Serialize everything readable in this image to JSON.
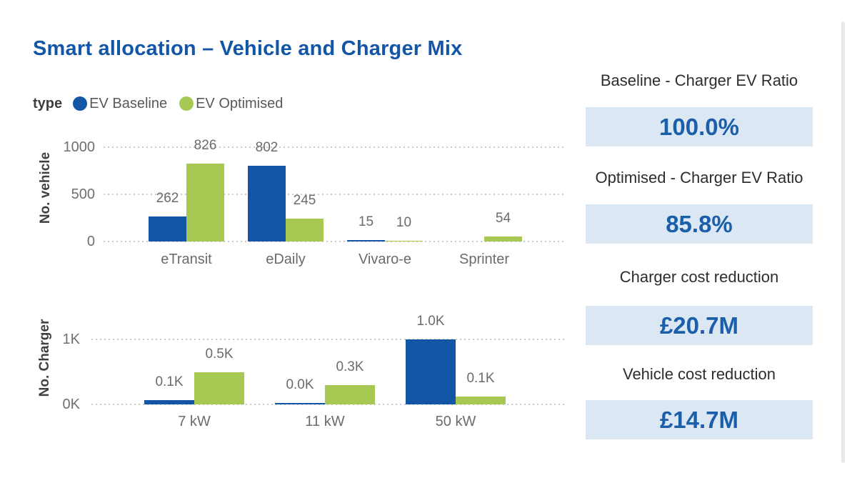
{
  "title": "Smart allocation – Vehicle and Charger Mix",
  "legend": {
    "label": "type",
    "items": [
      {
        "name": "EV Baseline",
        "color": "#1356a6"
      },
      {
        "name": "EV Optimised",
        "color": "#a8c854"
      }
    ]
  },
  "colors": {
    "baseline_blue": "#1356a6",
    "optimised_green": "#a8c854",
    "title_blue": "#1456a6",
    "kpi_value_blue": "#1b5ea9",
    "kpi_box_bg": "#dbe7f3",
    "chart_text_gray": "#6b6b6b"
  },
  "chart_data": [
    {
      "type": "bar",
      "ylabel": "No. vehicle",
      "categories": [
        "eTransit",
        "eDaily",
        "Vivaro-e",
        "Sprinter"
      ],
      "series": [
        {
          "name": "EV Baseline",
          "values": [
            262,
            802,
            15,
            0
          ],
          "data_labels": [
            "262",
            "802",
            "15",
            ""
          ]
        },
        {
          "name": "EV Optimised",
          "values": [
            826,
            245,
            10,
            54
          ],
          "data_labels": [
            "826",
            "245",
            "10",
            "54"
          ]
        }
      ],
      "ylim": [
        0,
        1000
      ],
      "yticks": [
        {
          "value": 1000,
          "label": "1000"
        },
        {
          "value": 500,
          "label": "500"
        },
        {
          "value": 0,
          "label": "0"
        }
      ],
      "grid": "horizontal dotted",
      "legend_position": "top"
    },
    {
      "type": "bar",
      "ylabel": "No. Charger",
      "categories": [
        "7 kW",
        "11 kW",
        "50 kW"
      ],
      "series": [
        {
          "name": "EV Baseline",
          "values": [
            65,
            20,
            1000
          ],
          "data_labels": [
            "0.1K",
            "0.0K",
            "1.0K"
          ]
        },
        {
          "name": "EV Optimised",
          "values": [
            500,
            300,
            120
          ],
          "data_labels": [
            "0.5K",
            "0.3K",
            "0.1K"
          ]
        }
      ],
      "ylim": [
        0,
        1000
      ],
      "yticks": [
        {
          "value": 1000,
          "label": "1K"
        },
        {
          "value": 0,
          "label": "0K"
        }
      ],
      "grid": "horizontal dotted",
      "legend_position": "top"
    }
  ],
  "kpis": [
    {
      "label": "Baseline - Charger EV Ratio",
      "value": "100.0%"
    },
    {
      "label": "Optimised - Charger EV Ratio",
      "value": "85.8%"
    },
    {
      "label": "Charger cost reduction",
      "value": "£20.7M"
    },
    {
      "label": "Vehicle cost reduction",
      "value": "£14.7M"
    }
  ]
}
